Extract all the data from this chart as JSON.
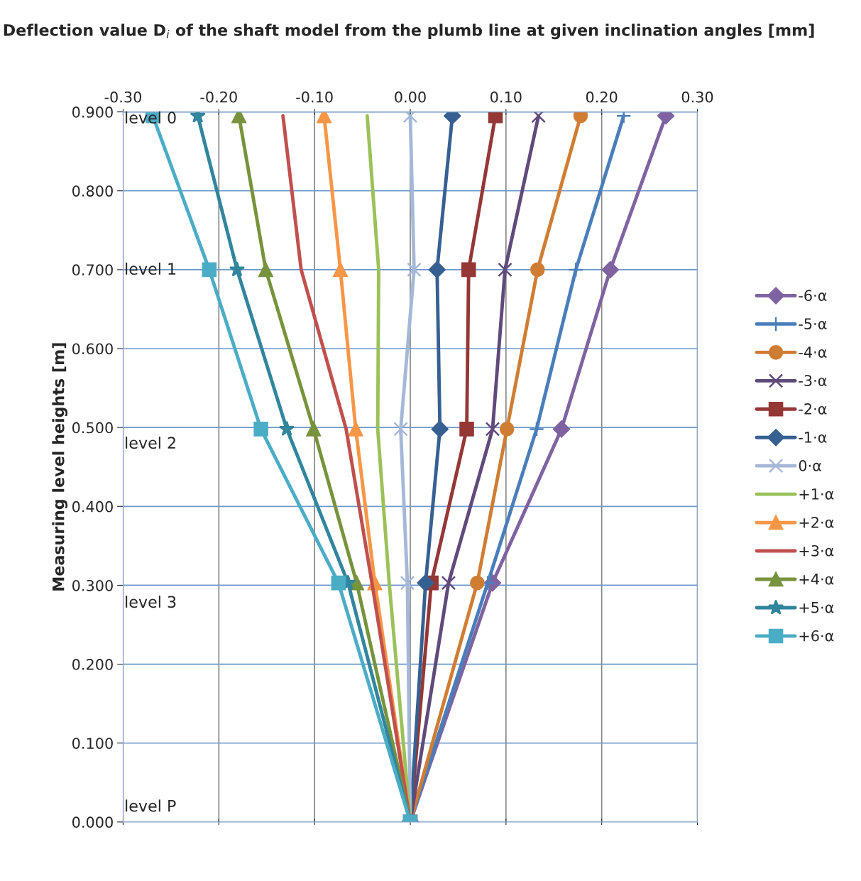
{
  "chart_data": {
    "type": "line",
    "title": "Deflection value D$_{i}$ of the shaft model from the plumb line at given inclination angles [mm]",
    "ylabel": "Measuring level heights [m]",
    "xlim": [
      -0.3,
      0.3
    ],
    "xticks": [
      {
        "value": -0.3,
        "label": "-0.30"
      },
      {
        "value": -0.2,
        "label": "-0.20"
      },
      {
        "value": -0.1,
        "label": "-0.10"
      },
      {
        "value": 0,
        "label": "0.00"
      },
      {
        "value": 0.1,
        "label": "0.10"
      },
      {
        "value": 0.2,
        "label": "0.20"
      },
      {
        "value": 0.3,
        "label": "0.30"
      }
    ],
    "ylim": [
      0,
      0.9
    ],
    "yticks": [
      {
        "value": 0,
        "label": "0.000"
      },
      {
        "value": 0.1,
        "label": "0.100"
      },
      {
        "value": 0.2,
        "label": "0.200"
      },
      {
        "value": 0.3,
        "label": "0.300"
      },
      {
        "value": 0.4,
        "label": "0.400"
      },
      {
        "value": 0.5,
        "label": "0.500"
      },
      {
        "value": 0.6,
        "label": "0.600"
      },
      {
        "value": 0.7,
        "label": "0.700"
      },
      {
        "value": 0.8,
        "label": "0.800"
      },
      {
        "value": 0.9,
        "label": "0.900"
      }
    ],
    "grid": true,
    "legend": "right",
    "line_style": "solid",
    "annotations": [
      "level 0",
      "level 1",
      "level 2",
      "level 3",
      "level P"
    ],
    "series": [
      {
        "name": "-6·α",
        "color": "#7f63a1",
        "marker": "diamond",
        "x": [
          0,
          0.086,
          0.158,
          0.209,
          0.267
        ],
        "values": [
          0,
          0.303,
          0.498,
          0.7,
          0.895
        ]
      },
      {
        "name": "-5·α",
        "color": "#4a7ebb",
        "marker": "plus",
        "x": [
          0,
          0.081,
          0.132,
          0.173,
          0.223
        ],
        "values": [
          0,
          0.303,
          0.498,
          0.7,
          0.895
        ]
      },
      {
        "name": "-4·α",
        "color": "#d07d34",
        "marker": "circle",
        "x": [
          0,
          0.07,
          0.101,
          0.133,
          0.178
        ],
        "values": [
          0,
          0.303,
          0.498,
          0.7,
          0.895
        ]
      },
      {
        "name": "-3·α",
        "color": "#604a7b",
        "marker": "cross",
        "x": [
          0,
          0.04,
          0.086,
          0.099,
          0.134
        ],
        "values": [
          0,
          0.303,
          0.498,
          0.7,
          0.895
        ]
      },
      {
        "name": "-2·α",
        "color": "#953735",
        "marker": "square",
        "x": [
          0,
          0.022,
          0.059,
          0.061,
          0.089
        ],
        "values": [
          0,
          0.303,
          0.498,
          0.7,
          0.895
        ]
      },
      {
        "name": "-1·α",
        "color": "#376092",
        "marker": "diamond",
        "x": [
          0,
          0.016,
          0.031,
          0.028,
          0.044
        ],
        "values": [
          0,
          0.303,
          0.498,
          0.7,
          0.895
        ]
      },
      {
        "name": "0·α",
        "color": "#a5b8d8",
        "marker": "cross",
        "x": [
          0,
          -0.003,
          -0.01,
          0.004,
          0.0
        ],
        "values": [
          0,
          0.303,
          0.498,
          0.7,
          0.895
        ]
      },
      {
        "name": "+1·α",
        "color": "#9bc15a",
        "marker": "none",
        "x": [
          0,
          -0.022,
          -0.034,
          -0.033,
          -0.045
        ],
        "values": [
          0,
          0.303,
          0.498,
          0.7,
          0.895
        ]
      },
      {
        "name": "+2·α",
        "color": "#f79646",
        "marker": "triangle",
        "x": [
          0,
          -0.037,
          -0.057,
          -0.073,
          -0.09
        ],
        "values": [
          0,
          0.303,
          0.498,
          0.7,
          0.895
        ]
      },
      {
        "name": "+3·α",
        "color": "#c0504d",
        "marker": "none",
        "x": [
          0,
          -0.04,
          -0.067,
          -0.114,
          -0.133
        ],
        "values": [
          0,
          0.303,
          0.498,
          0.7,
          0.895
        ]
      },
      {
        "name": "+4·α",
        "color": "#77933c",
        "marker": "triangle",
        "x": [
          0,
          -0.056,
          -0.101,
          -0.151,
          -0.179
        ],
        "values": [
          0,
          0.303,
          0.498,
          0.7,
          0.895
        ]
      },
      {
        "name": "+5·α",
        "color": "#31859c",
        "marker": "star",
        "x": [
          0,
          -0.065,
          -0.129,
          -0.181,
          -0.222
        ],
        "values": [
          0,
          0.303,
          0.498,
          0.7,
          0.895
        ]
      },
      {
        "name": "+6·α",
        "color": "#4bacc6",
        "marker": "square",
        "x": [
          0,
          -0.075,
          -0.156,
          -0.21,
          -0.269
        ],
        "values": [
          0,
          0.303,
          0.498,
          0.7,
          0.895
        ]
      }
    ]
  }
}
